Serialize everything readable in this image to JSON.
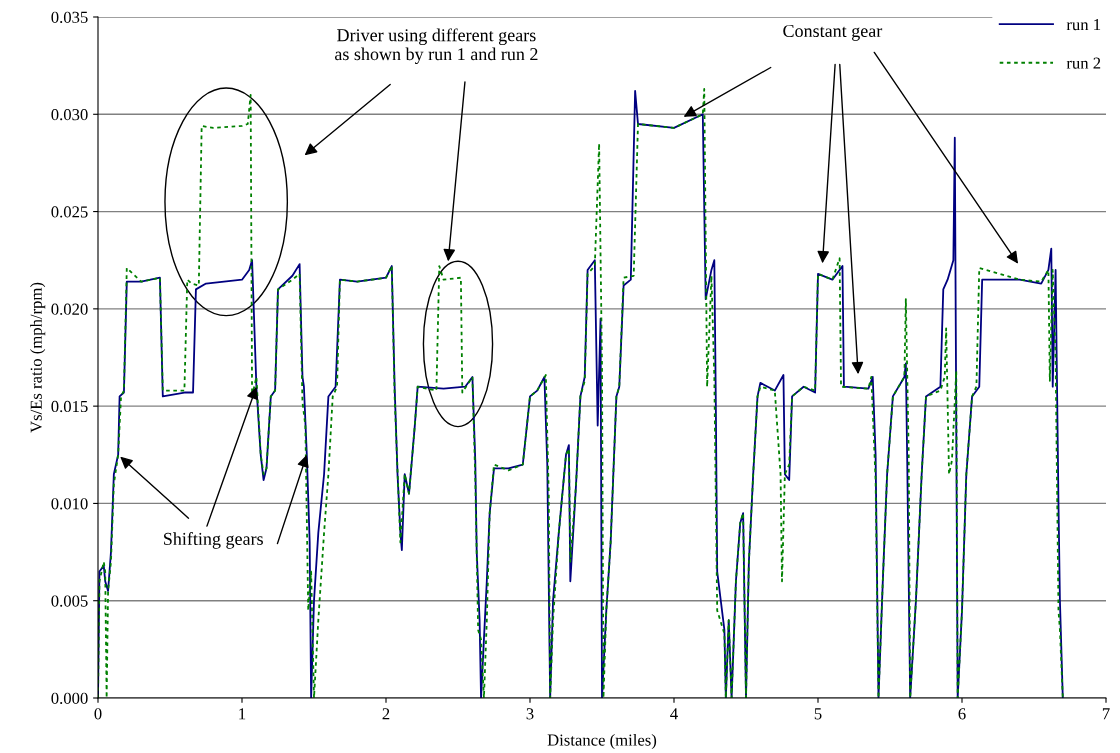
{
  "chart_data": {
    "type": "line",
    "xlabel": "Distance (miles)",
    "ylabel": "Vs/Es ratio (mph/rpm)",
    "xlim": [
      0,
      7
    ],
    "xticks": [
      0,
      1,
      2,
      3,
      4,
      5,
      6,
      7
    ],
    "ylim": [
      0,
      0.035
    ],
    "yticks": [
      {
        "value": 0,
        "label": "0.000"
      },
      {
        "value": 0.005,
        "label": "0.005"
      },
      {
        "value": 0.01,
        "label": "0.010"
      },
      {
        "value": 0.015,
        "label": "0.015"
      },
      {
        "value": 0.02,
        "label": "0.020"
      },
      {
        "value": 0.025,
        "label": "0.025"
      },
      {
        "value": 0.03,
        "label": "0.030"
      },
      {
        "value": 0.035,
        "label": "0.035"
      }
    ],
    "grid": "y",
    "legend": "top right",
    "series": [
      {
        "name": "run 1",
        "color": "#000080",
        "line_style": "solid",
        "x": [
          0,
          0.01,
          0.04,
          0.05,
          0.07,
          0.09,
          0.11,
          0.14,
          0.15,
          0.18,
          0.2,
          0.3,
          0.43,
          0.45,
          0.6,
          0.66,
          0.68,
          0.75,
          1.0,
          1.05,
          1.07,
          1.1,
          1.13,
          1.15,
          1.17,
          1.2,
          1.23,
          1.25,
          1.35,
          1.4,
          1.42,
          1.43,
          1.45,
          1.47,
          1.48,
          1.5,
          1.53,
          1.57,
          1.6,
          1.65,
          1.68,
          1.8,
          2.0,
          2.04,
          2.06,
          2.08,
          2.1,
          2.11,
          2.13,
          2.16,
          2.2,
          2.22,
          2.4,
          2.55,
          2.6,
          2.62,
          2.63,
          2.65,
          2.66,
          2.68,
          2.7,
          2.72,
          2.75,
          2.85,
          2.95,
          3.0,
          3.05,
          3.1,
          3.12,
          3.14,
          3.16,
          3.2,
          3.25,
          3.27,
          3.28,
          3.32,
          3.35,
          3.38,
          3.4,
          3.45,
          3.47,
          3.49,
          3.5,
          3.53,
          3.56,
          3.6,
          3.62,
          3.65,
          3.7,
          3.73,
          3.75,
          4.0,
          4.2,
          4.22,
          4.26,
          4.28,
          4.29,
          4.3,
          4.35,
          4.36,
          4.38,
          4.4,
          4.43,
          4.46,
          4.48,
          4.5,
          4.52,
          4.55,
          4.58,
          4.6,
          4.7,
          4.76,
          4.77,
          4.8,
          4.82,
          4.9,
          4.98,
          5.0,
          5.1,
          5.17,
          5.18,
          5.35,
          5.38,
          5.4,
          5.42,
          5.45,
          5.48,
          5.52,
          5.6,
          5.61,
          5.62,
          5.64,
          5.68,
          5.72,
          5.75,
          5.85,
          5.87,
          5.9,
          5.94,
          5.95,
          5.97,
          6.0,
          6.03,
          6.07,
          6.12,
          6.14,
          6.4,
          6.55,
          6.6,
          6.62,
          6.63,
          6.65,
          6.67,
          6.68,
          6.7
        ],
        "values": [
          0,
          0.0065,
          0.0068,
          0.006,
          0.0055,
          0.0075,
          0.0115,
          0.0125,
          0.0155,
          0.0157,
          0.0214,
          0.0214,
          0.0216,
          0.0155,
          0.0157,
          0.0157,
          0.021,
          0.0213,
          0.0215,
          0.022,
          0.0225,
          0.016,
          0.0125,
          0.0112,
          0.0118,
          0.0155,
          0.0158,
          0.021,
          0.0217,
          0.0223,
          0.0165,
          0.016,
          0.0125,
          0.008,
          0,
          0.005,
          0.0085,
          0.0115,
          0.0155,
          0.016,
          0.0215,
          0.0214,
          0.0216,
          0.0222,
          0.016,
          0.0115,
          0.0085,
          0.0076,
          0.0115,
          0.0105,
          0.014,
          0.016,
          0.0159,
          0.016,
          0.0165,
          0.0122,
          0.0075,
          0.004,
          0,
          0.003,
          0.006,
          0.0095,
          0.0118,
          0.0118,
          0.012,
          0.0155,
          0.0158,
          0.0165,
          0.012,
          0,
          0.005,
          0.0085,
          0.0125,
          0.013,
          0.006,
          0.011,
          0.0155,
          0.0165,
          0.022,
          0.0225,
          0.014,
          0.0195,
          0,
          0.0045,
          0.008,
          0.0155,
          0.016,
          0.0212,
          0.0215,
          0.0312,
          0.0295,
          0.0293,
          0.03,
          0.0205,
          0.022,
          0.0225,
          0.0155,
          0.0065,
          0.0035,
          0,
          0.004,
          0,
          0.006,
          0.009,
          0.0095,
          0,
          0.007,
          0.0115,
          0.0155,
          0.0162,
          0.0158,
          0.0166,
          0.0115,
          0.0112,
          0.0155,
          0.016,
          0.0157,
          0.0218,
          0.0215,
          0.0222,
          0.016,
          0.0159,
          0.0165,
          0.0125,
          0,
          0.006,
          0.0115,
          0.0155,
          0.0165,
          0.0172,
          0.012,
          0,
          0.005,
          0.0115,
          0.0155,
          0.016,
          0.021,
          0.0215,
          0.0225,
          0.0288,
          0,
          0.0045,
          0.0115,
          0.0155,
          0.016,
          0.0215,
          0.0215,
          0.0213,
          0.022,
          0.0231,
          0.016,
          0.022,
          0.01,
          0.005,
          0
        ]
      },
      {
        "name": "run 2",
        "color": "#008000",
        "line_style": "dashed",
        "x": [
          0,
          0.01,
          0.04,
          0.05,
          0.06,
          0.07,
          0.09,
          0.11,
          0.14,
          0.16,
          0.18,
          0.2,
          0.3,
          0.43,
          0.45,
          0.6,
          0.62,
          0.65,
          0.7,
          0.72,
          0.8,
          1.0,
          1.04,
          1.06,
          1.07,
          1.1,
          1.13,
          1.15,
          1.17,
          1.2,
          1.23,
          1.25,
          1.35,
          1.4,
          1.42,
          1.44,
          1.46,
          1.48,
          1.5,
          1.53,
          1.57,
          1.6,
          1.63,
          1.66,
          1.68,
          1.8,
          2.0,
          2.04,
          2.06,
          2.08,
          2.1,
          2.13,
          2.16,
          2.2,
          2.22,
          2.35,
          2.37,
          2.4,
          2.52,
          2.53,
          2.6,
          2.62,
          2.64,
          2.66,
          2.68,
          2.7,
          2.72,
          2.75,
          2.85,
          2.95,
          3.0,
          3.05,
          3.11,
          3.13,
          3.14,
          3.16,
          3.2,
          3.25,
          3.27,
          3.28,
          3.32,
          3.35,
          3.38,
          3.4,
          3.45,
          3.48,
          3.5,
          3.51,
          3.53,
          3.56,
          3.6,
          3.62,
          3.65,
          3.72,
          3.75,
          4.0,
          4.2,
          4.21,
          4.23,
          4.26,
          4.28,
          4.3,
          4.35,
          4.36,
          4.38,
          4.4,
          4.43,
          4.46,
          4.48,
          4.5,
          4.52,
          4.55,
          4.58,
          4.6,
          4.7,
          4.74,
          4.75,
          4.77,
          4.8,
          4.82,
          4.9,
          4.98,
          5.0,
          5.1,
          5.15,
          5.16,
          5.35,
          5.37,
          5.4,
          5.42,
          5.45,
          5.48,
          5.52,
          5.6,
          5.61,
          5.63,
          5.64,
          5.68,
          5.72,
          5.75,
          5.85,
          5.88,
          5.89,
          5.91,
          5.93,
          5.96,
          5.97,
          6.0,
          6.03,
          6.07,
          6.1,
          6.12,
          6.4,
          6.55,
          6.6,
          6.61,
          6.63,
          6.65,
          6.67,
          6.68,
          6.7
        ],
        "values": [
          0,
          0.006,
          0.007,
          0.0065,
          0,
          0.0055,
          0.007,
          0.011,
          0.0125,
          0.0155,
          0.0158,
          0.0221,
          0.0214,
          0.0216,
          0.0158,
          0.0158,
          0.0215,
          0.0213,
          0.0212,
          0.0294,
          0.0293,
          0.0294,
          0.0295,
          0.031,
          0.0155,
          0.0165,
          0.0125,
          0.0115,
          0.0118,
          0.0155,
          0.0158,
          0.021,
          0.0215,
          0.0218,
          0.0152,
          0.014,
          0.0045,
          0.0065,
          0.0,
          0.004,
          0.0085,
          0.0115,
          0.0155,
          0.016,
          0.0215,
          0.0214,
          0.0216,
          0.0222,
          0.0155,
          0.0117,
          0.008,
          0.0115,
          0.0105,
          0.014,
          0.016,
          0.0158,
          0.0222,
          0.0215,
          0.0216,
          0.0157,
          0.0165,
          0.0113,
          0.0035,
          0.003,
          0,
          0.004,
          0.0095,
          0.012,
          0.0117,
          0.012,
          0.0155,
          0.0158,
          0.0166,
          0.0105,
          0,
          0.004,
          0.0085,
          0.0125,
          0.0128,
          0.007,
          0.011,
          0.0155,
          0.0163,
          0.0218,
          0.0222,
          0.0285,
          0.017,
          0.0,
          0.0045,
          0.008,
          0.0155,
          0.016,
          0.0216,
          0.0217,
          0.0295,
          0.0293,
          0.03,
          0.0313,
          0.016,
          0.0217,
          0.0165,
          0.0045,
          0.0033,
          0,
          0.004,
          0,
          0.006,
          0.009,
          0.0095,
          0,
          0.007,
          0.0115,
          0.0155,
          0.016,
          0.0158,
          0.0115,
          0.006,
          0.0115,
          0.012,
          0.0155,
          0.016,
          0.0158,
          0.0218,
          0.0215,
          0.0226,
          0.016,
          0.0159,
          0.0165,
          0.0112,
          0,
          0.006,
          0.0115,
          0.0155,
          0.0165,
          0.0205,
          0.0125,
          0,
          0.005,
          0.0115,
          0.0155,
          0.0158,
          0.0165,
          0.019,
          0.0115,
          0.0122,
          0.0168,
          0,
          0.0045,
          0.0115,
          0.0155,
          0.016,
          0.0221,
          0.0215,
          0.0214,
          0.022,
          0.0163,
          0.022,
          0.0175,
          0.0045,
          0.0035,
          0
        ]
      }
    ],
    "annotations": [
      "Driver using different gears\nas shown by run 1 and run 2",
      "Constant gear",
      {
        "text": "Shifting gears",
        "x": 0.14,
        "y": 0.0125
      }
    ]
  }
}
